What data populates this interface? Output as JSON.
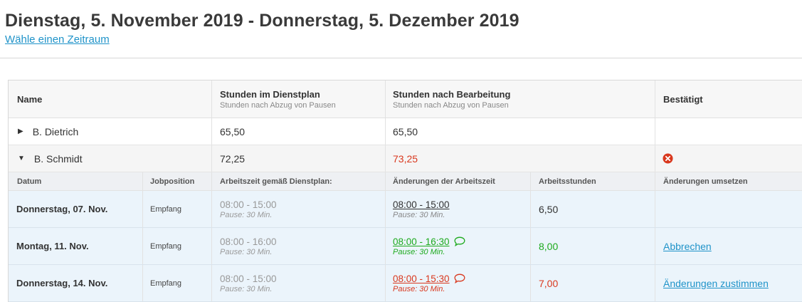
{
  "header": {
    "title": "Dienstag, 5. November 2019 - Donnerstag, 5. Dezember 2019",
    "period_link": "Wähle einen Zeitraum"
  },
  "table": {
    "columns": {
      "name": "Name",
      "planned_hours": "Stunden im Dienstplan",
      "planned_hours_sub": "Stunden nach Abzug von Pausen",
      "edited_hours": "Stunden nach Bearbeitung",
      "edited_hours_sub": "Stunden nach Abzug von Pausen",
      "confirmed": "Bestätigt"
    },
    "employees": [
      {
        "name": "B. Dietrich",
        "planned": "65,50",
        "edited": "65,50",
        "expanded": false
      },
      {
        "name": "B. Schmidt",
        "planned": "72,25",
        "edited": "73,25",
        "expanded": true,
        "confirmed_icon": "x-circle-icon"
      }
    ],
    "detail_columns": {
      "date": "Datum",
      "job": "Jobposition",
      "planned_time": "Arbeitszeit gemäß Dienstplan:",
      "changes": "Änderungen der Arbeitszeit",
      "hours": "Arbeitsstunden",
      "apply": "Änderungen umsetzen"
    },
    "days": [
      {
        "date": "Donnerstag, 07. Nov.",
        "job": "Empfang",
        "planned_time": "08:00 - 15:00",
        "planned_pause": "Pause: 30 Min.",
        "changed_time": "08:00 - 15:00",
        "changed_pause": "Pause: 30 Min.",
        "hours": "6,50",
        "action": ""
      },
      {
        "date": "Montag, 11. Nov.",
        "job": "Empfang",
        "planned_time": "08:00 - 16:00",
        "planned_pause": "Pause: 30 Min.",
        "changed_time": "08:00 - 16:30",
        "changed_pause": "Pause: 30 Min.",
        "hours": "8,00",
        "action": "Abbrechen"
      },
      {
        "date": "Donnerstag, 14. Nov.",
        "job": "Empfang",
        "planned_time": "08:00 - 15:00",
        "planned_pause": "Pause: 30 Min.",
        "changed_time": "08:00 - 15:30",
        "changed_pause": "Pause: 30 Min.",
        "hours": "7,00",
        "action": "Änderungen zustimmen"
      }
    ]
  },
  "colors": {
    "link": "#1f93c9",
    "increase": "#1eaa1e",
    "decrease": "#d9381e",
    "error_icon": "#d9381e",
    "row_highlight": "#ebf4fb"
  }
}
